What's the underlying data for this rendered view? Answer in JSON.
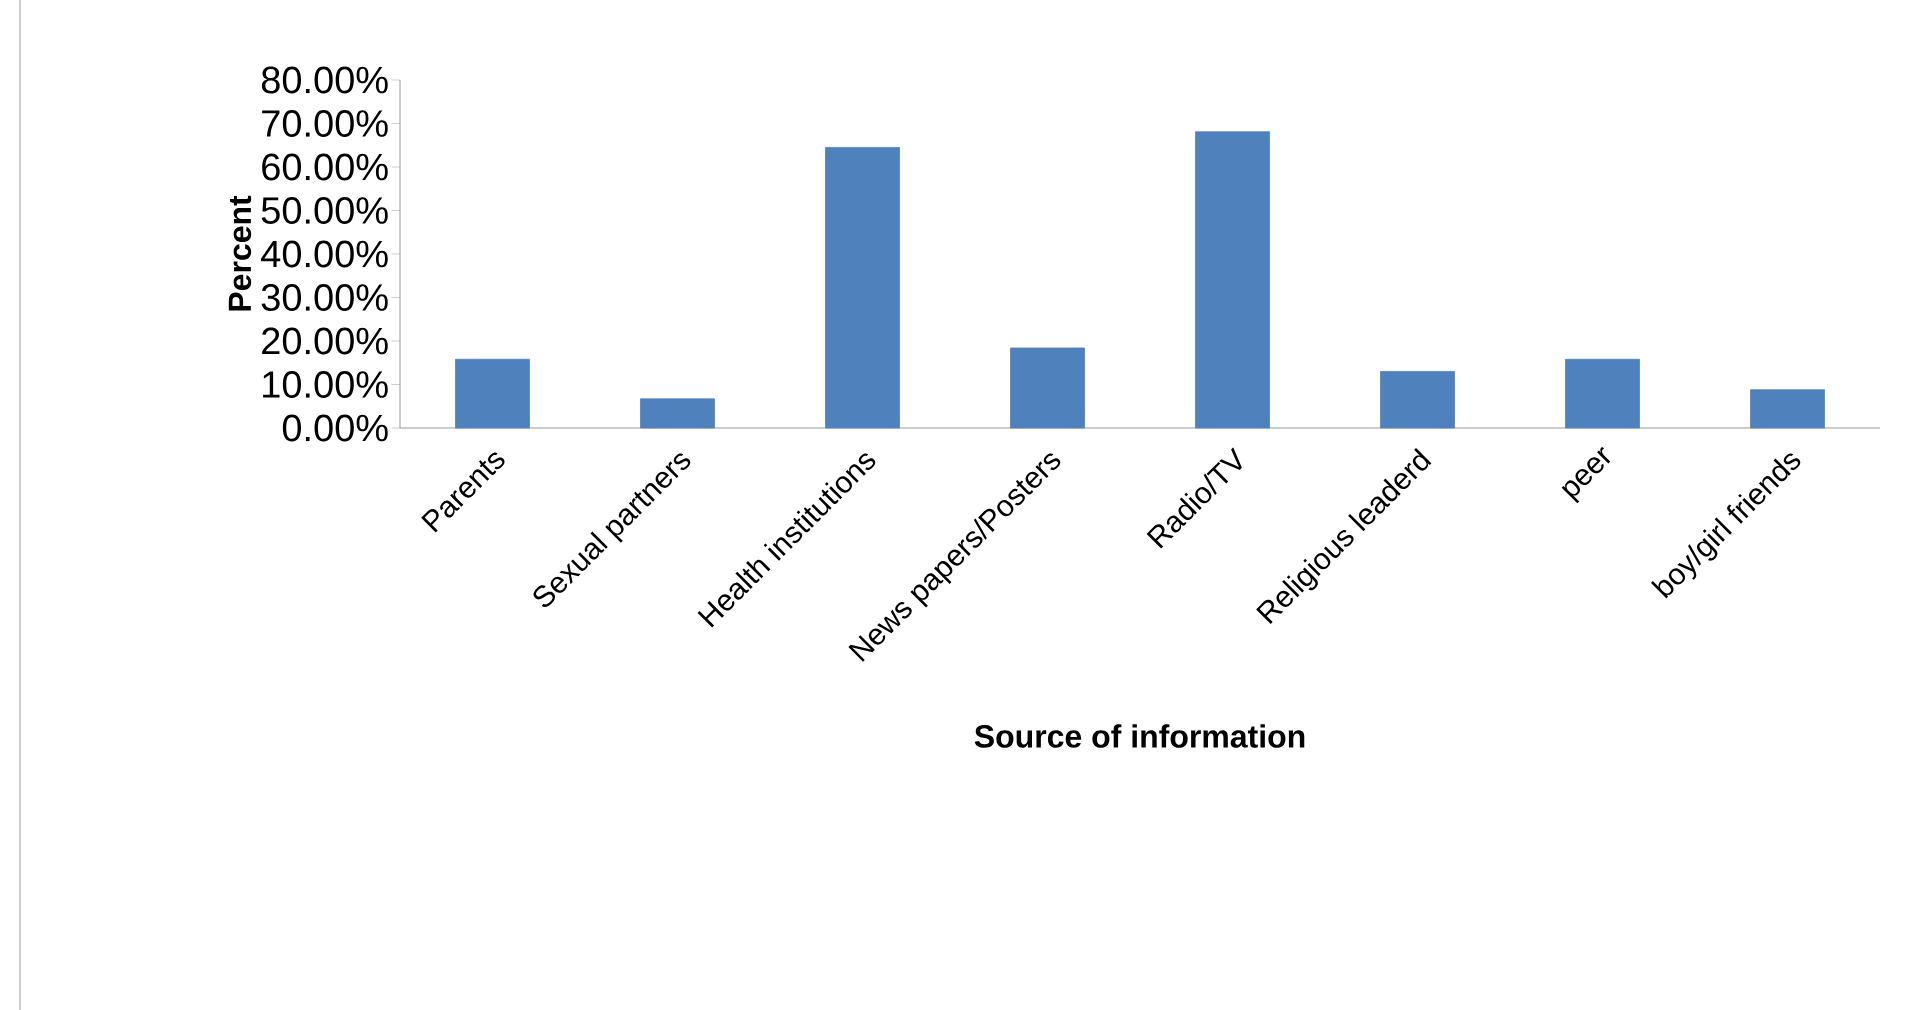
{
  "chart_data": {
    "type": "bar",
    "xlabel": "Source of information",
    "ylabel": "Percent",
    "categories": [
      "Parents",
      "Sexual partners",
      "Health institutions",
      "News papers/Posters",
      "Radio/TV",
      "Religious leaderd",
      "peer",
      "boy/girl friends"
    ],
    "values": [
      15.8,
      6.7,
      64.5,
      18.4,
      68.1,
      13.0,
      15.8,
      8.8
    ],
    "color": "#4f81bd",
    "ylim": [
      0,
      80
    ],
    "yticks": [
      {
        "value": 0,
        "label": "0.00%"
      },
      {
        "value": 10,
        "label": "10.00%"
      },
      {
        "value": 20,
        "label": "20.00%"
      },
      {
        "value": 30,
        "label": "30.00%"
      },
      {
        "value": 40,
        "label": "40.00%"
      },
      {
        "value": 50,
        "label": "50.00%"
      },
      {
        "value": 60,
        "label": "60.00%"
      },
      {
        "value": 70,
        "label": "70.00%"
      },
      {
        "value": 80,
        "label": "80.00%"
      }
    ],
    "grid": false
  }
}
